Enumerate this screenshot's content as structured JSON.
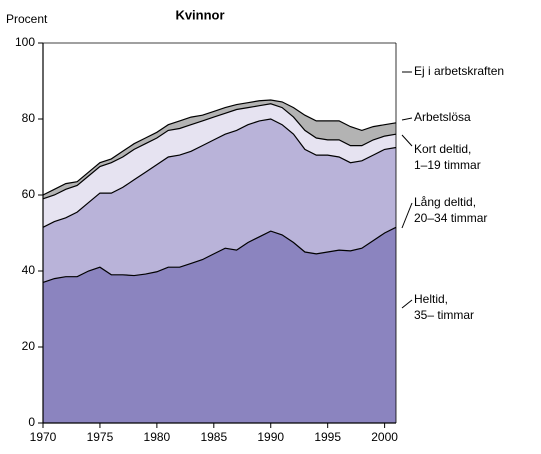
{
  "chart_data": {
    "type": "stacked_area",
    "title": "Kvinnor",
    "y_label": "Procent",
    "x": [
      1970,
      1971,
      1972,
      1973,
      1974,
      1975,
      1976,
      1977,
      1978,
      1979,
      1980,
      1981,
      1982,
      1983,
      1984,
      1985,
      1986,
      1987,
      1988,
      1989,
      1990,
      1991,
      1992,
      1993,
      1994,
      1995,
      1996,
      1997,
      1998,
      1999,
      2000,
      2001
    ],
    "xlim": [
      1970,
      2001
    ],
    "xticks": [
      1970,
      1975,
      1980,
      1985,
      1990,
      1995,
      2000
    ],
    "ylim": [
      0,
      100
    ],
    "yticks": [
      0,
      20,
      40,
      60,
      80,
      100
    ],
    "series": [
      {
        "name": "Heltid, 35– timmar",
        "color": "#8b84bf",
        "values": [
          37,
          38,
          38.5,
          38.5,
          40,
          41,
          39,
          39,
          38.8,
          39.2,
          39.8,
          41,
          41,
          42,
          43,
          44.5,
          46,
          45.5,
          47.5,
          49,
          50.5,
          49.5,
          47.5,
          45,
          44.5,
          45,
          45.5,
          45.3,
          46,
          48,
          50,
          51.5
        ]
      },
      {
        "name": "Lång deltid, 20–34 timmar",
        "color": "#b9b3d9",
        "values": [
          14.5,
          15,
          15.5,
          17,
          18,
          19.5,
          21.5,
          23,
          25.2,
          26.8,
          28.2,
          29,
          29.5,
          29.5,
          30,
          30,
          30,
          31.5,
          31,
          30.5,
          29.5,
          29,
          28.5,
          27,
          26,
          25.5,
          24.5,
          23.2,
          23,
          22.5,
          22,
          21
        ]
      },
      {
        "name": "Kort deltid, 1–19 timmar",
        "color": "#e6e3f1",
        "values": [
          7.5,
          7,
          7.5,
          7,
          7,
          7,
          8,
          8,
          8,
          7.5,
          7,
          7,
          7,
          7,
          6.5,
          6,
          5.5,
          5.5,
          4.5,
          4,
          4,
          4.5,
          4.5,
          5,
          4.5,
          4,
          4.5,
          4.5,
          4,
          4,
          3.5,
          3.5
        ]
      },
      {
        "name": "Arbetslösa",
        "color": "#b3b3b3",
        "values": [
          1,
          1.5,
          1.5,
          1,
          1,
          1,
          1,
          1.5,
          1.5,
          1.5,
          1.5,
          1.5,
          2,
          2,
          1.5,
          1.5,
          1.5,
          1.3,
          1.3,
          1.3,
          1,
          1.5,
          2.5,
          4,
          4.5,
          5,
          5,
          5,
          4,
          3.5,
          3,
          3
        ]
      },
      {
        "name": "Ej i arbetskraften",
        "color": "#ffffff",
        "values": [
          40,
          38.5,
          37,
          36.5,
          34,
          31.5,
          30.5,
          28.5,
          26.5,
          25,
          23.5,
          21.5,
          20.5,
          19.5,
          19,
          18,
          17,
          16.2,
          15.7,
          15.2,
          15,
          15.5,
          17,
          19,
          20.5,
          20.5,
          20.5,
          22,
          23,
          22,
          21.5,
          21
        ]
      }
    ]
  }
}
